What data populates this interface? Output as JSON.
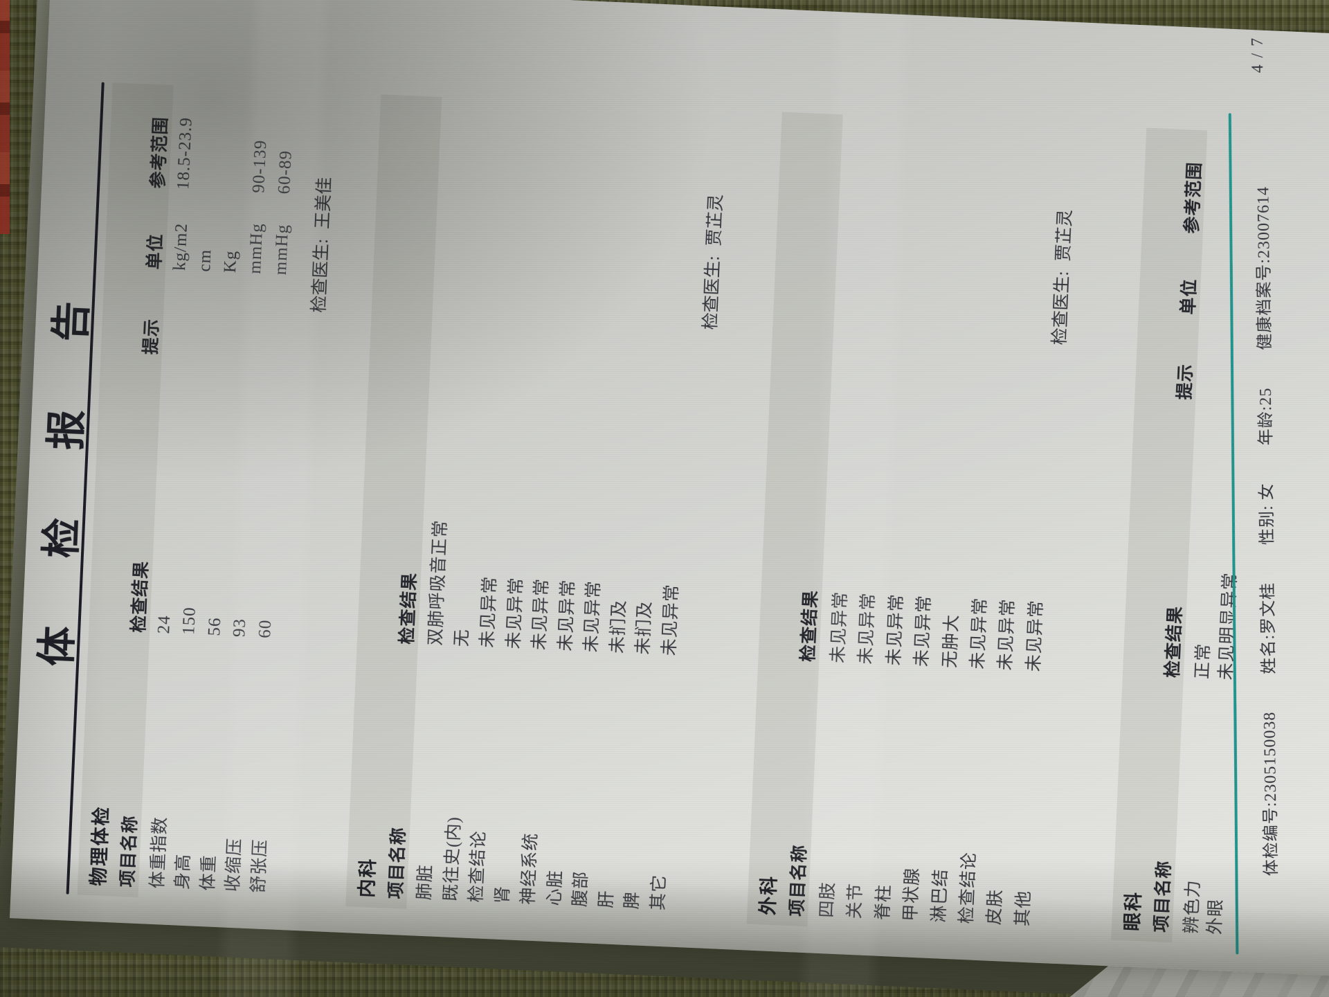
{
  "page": {
    "title": "体 检 报 告",
    "page_number": "4 / 7"
  },
  "column_headers": {
    "item": "项目名称",
    "result": "检查结果",
    "hint": "提示",
    "unit": "单位",
    "range": "参考范围"
  },
  "sections": [
    {
      "name": "物理体检",
      "header_type": "full",
      "doctor_label": "检查医生:",
      "doctor": "王美佳",
      "rows": [
        {
          "item": "体重指数",
          "result": "24",
          "hint": "",
          "unit": "kg/m2",
          "range": "18.5-23.9"
        },
        {
          "item": "身高",
          "result": "150",
          "hint": "",
          "unit": "cm",
          "range": ""
        },
        {
          "item": "体重",
          "result": "56",
          "hint": "",
          "unit": "Kg",
          "range": ""
        },
        {
          "item": "收缩压",
          "result": "93",
          "hint": "",
          "unit": "mmHg",
          "range": "90-139"
        },
        {
          "item": "舒张压",
          "result": "60",
          "hint": "",
          "unit": "mmHg",
          "range": "60-89"
        }
      ]
    },
    {
      "name": "内科",
      "header_type": "short",
      "doctor_label": "检查医生:",
      "doctor": "贾芷灵",
      "rows": [
        {
          "item": "肺脏",
          "result": "双肺呼吸音正常"
        },
        {
          "item": "既往史(内)",
          "result": "无"
        },
        {
          "item": "检查结论",
          "result": "未见异常"
        },
        {
          "item": "肾",
          "result": "未见异常"
        },
        {
          "item": "神经系统",
          "result": "未见异常"
        },
        {
          "item": "心脏",
          "result": "未见异常"
        },
        {
          "item": "腹部",
          "result": "未见异常"
        },
        {
          "item": "肝",
          "result": "未扪及"
        },
        {
          "item": "脾",
          "result": "未扪及"
        },
        {
          "item": "其它",
          "result": "未见异常"
        }
      ]
    },
    {
      "name": "外科",
      "header_type": "short",
      "doctor_label": "检查医生:",
      "doctor": "贾芷灵",
      "rows": [
        {
          "item": "四肢",
          "result": "未见异常"
        },
        {
          "item": "关节",
          "result": "未见异常"
        },
        {
          "item": "脊柱",
          "result": "未见异常"
        },
        {
          "item": "甲状腺",
          "result": "未见异常"
        },
        {
          "item": "淋巴结",
          "result": "无肿大"
        },
        {
          "item": "检查结论",
          "result": "未见异常"
        },
        {
          "item": "皮肤",
          "result": "未见异常"
        },
        {
          "item": "其他",
          "result": "未见异常"
        }
      ]
    },
    {
      "name": "眼科",
      "header_type": "full",
      "doctor_label": "",
      "doctor": "",
      "rows": [
        {
          "item": "辨色力",
          "result": "正常",
          "hint": "",
          "unit": "",
          "range": ""
        },
        {
          "item": "外眼",
          "result": "未见明显异常",
          "hint": "",
          "unit": "",
          "range": ""
        }
      ]
    }
  ],
  "footer": {
    "exam_no_label": "体检编号:",
    "exam_no": "2305150038",
    "name_label": "姓名:",
    "name": "罗文桂",
    "gender_label": "性别:",
    "gender": "女",
    "age_label": "年龄:",
    "age": "25",
    "record_label": "健康档案号:",
    "record_no": "23007614"
  },
  "colors": {
    "teal_rule": "#1f948d",
    "ink": "#3a3b42",
    "paper": "#d5d6d2",
    "fabric": "#53552f",
    "red_stripe": "#b23528"
  }
}
